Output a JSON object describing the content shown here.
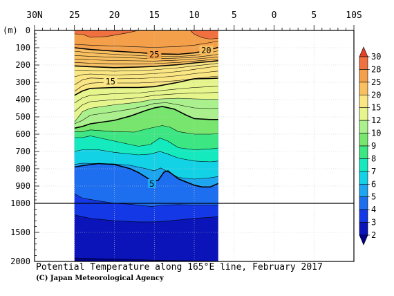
{
  "chart_data": {
    "type": "heatmap",
    "title": "Potential Temperature along 165°E line, February 2017",
    "credit": "(C) Japan Meteorological Agency",
    "x_axis": {
      "ticks": [
        "30N",
        "25",
        "20",
        "15",
        "10",
        "5",
        "0",
        "5",
        "10S"
      ],
      "range_latitude": [
        30,
        -10
      ]
    },
    "y_axis": {
      "unit_label": "(m)",
      "ticks_upper": [
        "0",
        "100",
        "200",
        "300",
        "400",
        "500",
        "600",
        "700",
        "800",
        "900",
        "1000"
      ],
      "ticks_lower": [
        "1500",
        "2000"
      ],
      "range_depth_m": [
        0,
        2000
      ],
      "upper_section_max_m": 1000,
      "section_break_depth_m": 1000
    },
    "data_extent_latitude": [
      25,
      7
    ],
    "colorbar": {
      "levels": [
        "2",
        "3",
        "4",
        "5",
        "6",
        "7",
        "8",
        "9",
        "10",
        "12",
        "15",
        "20",
        "25",
        "28",
        "30"
      ],
      "colors": [
        "#00008a",
        "#0a14b9",
        "#1438e6",
        "#1e6ef0",
        "#1ea5f0",
        "#14d2e6",
        "#14eabe",
        "#3ce682",
        "#78e66e",
        "#aaf08c",
        "#e6f58c",
        "#fae682",
        "#f8c060",
        "#f4a04a",
        "#f07040",
        "#e64028"
      ]
    },
    "isotherm_labels": [
      {
        "label": "25",
        "lat": 15.0,
        "depth_m": 140
      },
      {
        "label": "20",
        "lat": 8.5,
        "depth_m": 115
      },
      {
        "label": "15",
        "lat": 20.5,
        "depth_m": 295
      },
      {
        "label": "5",
        "lat": 15.3,
        "depth_m": 888
      }
    ],
    "isotherms": [
      {
        "temp": 28,
        "bold": false,
        "points": [
          [
            25,
            20
          ],
          [
            24,
            22
          ],
          [
            23,
            40
          ],
          [
            21,
            35
          ],
          [
            18.5,
            15
          ],
          [
            17,
            0
          ]
        ]
      },
      {
        "temp": 28,
        "bold": false,
        "points": [
          [
            10.5,
            0
          ],
          [
            10,
            22
          ],
          [
            9,
            42
          ],
          [
            8,
            50
          ],
          [
            7,
            45
          ]
        ]
      },
      {
        "temp": 26,
        "bold": false,
        "points": [
          [
            25,
            80
          ],
          [
            23,
            85
          ],
          [
            20,
            90
          ],
          [
            17,
            95
          ],
          [
            15,
            98
          ],
          [
            12,
            93
          ],
          [
            10,
            85
          ],
          [
            8,
            70
          ],
          [
            7,
            62
          ]
        ]
      },
      {
        "temp": 25,
        "bold": true,
        "points": [
          [
            25,
            100
          ],
          [
            23,
            110
          ],
          [
            20,
            120
          ],
          [
            17,
            128
          ],
          [
            15,
            135
          ],
          [
            12,
            138
          ],
          [
            10,
            130
          ],
          [
            8,
            112
          ],
          [
            7,
            98
          ]
        ]
      },
      {
        "temp": 24,
        "bold": false,
        "points": [
          [
            25,
            120
          ],
          [
            23,
            130
          ],
          [
            20,
            138
          ],
          [
            17,
            145
          ],
          [
            15,
            150
          ],
          [
            12,
            150
          ],
          [
            10,
            145
          ],
          [
            8,
            128
          ],
          [
            7,
            118
          ]
        ]
      },
      {
        "temp": 23,
        "bold": false,
        "points": [
          [
            25,
            145
          ],
          [
            23,
            150
          ],
          [
            20,
            155
          ],
          [
            17,
            160
          ],
          [
            15,
            163
          ],
          [
            12,
            160
          ],
          [
            10,
            155
          ],
          [
            8,
            145
          ],
          [
            7,
            138
          ]
        ]
      },
      {
        "temp": 22,
        "bold": false,
        "points": [
          [
            25,
            165
          ],
          [
            23,
            170
          ],
          [
            20,
            174
          ],
          [
            17,
            176
          ],
          [
            15,
            177
          ],
          [
            12,
            172
          ],
          [
            10,
            166
          ],
          [
            8,
            158
          ],
          [
            7,
            153
          ]
        ]
      },
      {
        "temp": 21,
        "bold": false,
        "points": [
          [
            25,
            185
          ],
          [
            23,
            190
          ],
          [
            20,
            193
          ],
          [
            17,
            193
          ],
          [
            15,
            192
          ],
          [
            12,
            185
          ],
          [
            10,
            177
          ],
          [
            8,
            170
          ],
          [
            7,
            166
          ]
        ]
      },
      {
        "temp": 20,
        "bold": true,
        "points": [
          [
            25,
            205
          ],
          [
            23,
            210
          ],
          [
            20,
            215
          ],
          [
            17,
            212
          ],
          [
            15,
            208
          ],
          [
            12,
            198
          ],
          [
            10,
            188
          ],
          [
            8,
            180
          ],
          [
            7,
            175
          ]
        ]
      },
      {
        "temp": 19,
        "bold": false,
        "points": [
          [
            25,
            230
          ],
          [
            23,
            232
          ],
          [
            20,
            236
          ],
          [
            17,
            232
          ],
          [
            15,
            228
          ],
          [
            12,
            216
          ],
          [
            10,
            205
          ],
          [
            8,
            195
          ],
          [
            7,
            190
          ]
        ]
      },
      {
        "temp": 18,
        "bold": false,
        "points": [
          [
            25,
            268
          ],
          [
            24,
            256
          ],
          [
            23,
            252
          ],
          [
            20,
            258
          ],
          [
            17,
            254
          ],
          [
            15,
            250
          ],
          [
            12,
            238
          ],
          [
            10,
            225
          ],
          [
            8,
            212
          ],
          [
            7,
            208
          ]
        ]
      },
      {
        "temp": 17,
        "bold": false,
        "points": [
          [
            25,
            315
          ],
          [
            24,
            285
          ],
          [
            23,
            275
          ],
          [
            20,
            280
          ],
          [
            17,
            278
          ],
          [
            15,
            274
          ],
          [
            12,
            262
          ],
          [
            10,
            250
          ],
          [
            8,
            240
          ],
          [
            7,
            235
          ]
        ]
      },
      {
        "temp": 16,
        "bold": false,
        "points": [
          [
            25,
            352
          ],
          [
            24,
            320
          ],
          [
            23,
            305
          ],
          [
            21,
            300
          ],
          [
            20,
            304
          ],
          [
            17,
            304
          ],
          [
            15,
            300
          ],
          [
            12,
            290
          ],
          [
            10,
            278
          ],
          [
            8,
            268
          ],
          [
            7,
            264
          ]
        ]
      },
      {
        "temp": 15,
        "bold": true,
        "points": [
          [
            25,
            375
          ],
          [
            24,
            350
          ],
          [
            23,
            335
          ],
          [
            20,
            330
          ],
          [
            17,
            330
          ],
          [
            15,
            325
          ],
          [
            12,
            300
          ],
          [
            10,
            280
          ],
          [
            8,
            278
          ],
          [
            7,
            276
          ]
        ]
      },
      {
        "temp": 14,
        "bold": false,
        "points": [
          [
            25,
            420
          ],
          [
            24,
            390
          ],
          [
            23,
            375
          ],
          [
            20,
            366
          ],
          [
            17,
            362
          ],
          [
            15,
            352
          ],
          [
            12,
            338
          ],
          [
            10,
            330
          ],
          [
            8,
            325
          ],
          [
            7,
            322
          ]
        ]
      },
      {
        "temp": 13,
        "bold": false,
        "points": [
          [
            25,
            470
          ],
          [
            24,
            430
          ],
          [
            23,
            412
          ],
          [
            20,
            400
          ],
          [
            17,
            390
          ],
          [
            15,
            375
          ],
          [
            12,
            366
          ],
          [
            10,
            362
          ],
          [
            8,
            360
          ],
          [
            7,
            358
          ]
        ]
      },
      {
        "temp": 12,
        "bold": false,
        "points": [
          [
            25,
            530
          ],
          [
            24,
            470
          ],
          [
            23,
            450
          ],
          [
            20,
            430
          ],
          [
            17,
            415
          ],
          [
            15,
            398
          ],
          [
            12,
            392
          ],
          [
            10,
            396
          ],
          [
            8,
            398
          ],
          [
            7,
            398
          ]
        ]
      },
      {
        "temp": 11,
        "bold": false,
        "points": [
          [
            25,
            540
          ],
          [
            24,
            520
          ],
          [
            23,
            490
          ],
          [
            20,
            470
          ],
          [
            18,
            455
          ],
          [
            16,
            435
          ],
          [
            15,
            422
          ],
          [
            13.5,
            418
          ],
          [
            12,
            430
          ],
          [
            10,
            448
          ],
          [
            8,
            452
          ],
          [
            7,
            450
          ]
        ]
      },
      {
        "temp": 10,
        "bold": true,
        "points": [
          [
            25,
            565
          ],
          [
            24,
            555
          ],
          [
            23,
            540
          ],
          [
            20,
            520
          ],
          [
            18,
            495
          ],
          [
            16,
            462
          ],
          [
            15,
            448
          ],
          [
            14,
            440
          ],
          [
            12.5,
            455
          ],
          [
            11,
            490
          ],
          [
            10,
            510
          ],
          [
            8,
            515
          ],
          [
            7,
            515
          ]
        ]
      },
      {
        "temp": 9,
        "bold": false,
        "points": [
          [
            25,
            585
          ],
          [
            24,
            585
          ],
          [
            23,
            575
          ],
          [
            20,
            585
          ],
          [
            17.5,
            588
          ],
          [
            16,
            570
          ],
          [
            14,
            550
          ],
          [
            13,
            560
          ],
          [
            12,
            585
          ],
          [
            10,
            600
          ],
          [
            8,
            600
          ],
          [
            7,
            598
          ]
        ]
      },
      {
        "temp": 8,
        "bold": false,
        "points": [
          [
            25,
            620
          ],
          [
            24,
            620
          ],
          [
            23,
            610
          ],
          [
            20,
            640
          ],
          [
            17,
            670
          ],
          [
            15.5,
            660
          ],
          [
            14.3,
            622
          ],
          [
            13.3,
            640
          ],
          [
            12,
            678
          ],
          [
            10,
            690
          ],
          [
            8,
            685
          ],
          [
            7,
            680
          ]
        ]
      },
      {
        "temp": 7,
        "bold": false,
        "points": [
          [
            25,
            700
          ],
          [
            24,
            690
          ],
          [
            22,
            690
          ],
          [
            20,
            705
          ],
          [
            17,
            720
          ],
          [
            15.5,
            715
          ],
          [
            14.3,
            700
          ],
          [
            13.3,
            715
          ],
          [
            12,
            738
          ],
          [
            10,
            755
          ],
          [
            8,
            760
          ],
          [
            7,
            755
          ]
        ]
      },
      {
        "temp": 6,
        "bold": false,
        "points": [
          [
            25,
            775
          ],
          [
            24,
            768
          ],
          [
            22,
            770
          ],
          [
            20,
            772
          ],
          [
            18,
            780
          ],
          [
            16,
            800
          ],
          [
            15,
            812
          ],
          [
            14.2,
            795
          ],
          [
            13.2,
            820
          ],
          [
            12,
            850
          ],
          [
            10,
            860
          ],
          [
            8,
            852
          ],
          [
            7,
            845
          ]
        ]
      },
      {
        "temp": 5,
        "bold": true,
        "points": [
          [
            25,
            790
          ],
          [
            24,
            782
          ],
          [
            22,
            770
          ],
          [
            20,
            775
          ],
          [
            18,
            800
          ],
          [
            17,
            822
          ],
          [
            16,
            850
          ],
          [
            15.3,
            873
          ],
          [
            14.5,
            866
          ],
          [
            13.8,
            820
          ],
          [
            13.3,
            812
          ],
          [
            12,
            858
          ],
          [
            10,
            895
          ],
          [
            9,
            905
          ],
          [
            8,
            905
          ],
          [
            7,
            885
          ]
        ]
      },
      {
        "temp": 4,
        "bold": false,
        "points": [
          [
            25,
            945
          ],
          [
            24,
            970
          ],
          [
            22,
            985
          ],
          [
            20,
            1000
          ],
          [
            18,
            1015
          ],
          [
            16,
            1045
          ],
          [
            15.3,
            1055
          ],
          [
            14,
            1030
          ],
          [
            12,
            1022
          ],
          [
            10,
            1030
          ],
          [
            8,
            1030
          ],
          [
            7,
            1028
          ]
        ]
      },
      {
        "temp": 3,
        "bold": false,
        "points": [
          [
            25,
            1200
          ],
          [
            23,
            1260
          ],
          [
            20,
            1300
          ],
          [
            17,
            1320
          ],
          [
            15,
            1320
          ],
          [
            13,
            1300
          ],
          [
            10,
            1260
          ],
          [
            8,
            1240
          ],
          [
            7,
            1230
          ]
        ]
      },
      {
        "temp": 2,
        "bold": false,
        "points": [
          [
            25,
            1940
          ],
          [
            23,
            1950
          ],
          [
            20,
            1960
          ],
          [
            17,
            1970
          ],
          [
            15,
            1980
          ],
          [
            13,
            1985
          ],
          [
            10,
            1990
          ],
          [
            8,
            1992
          ],
          [
            7,
            1995
          ]
        ]
      }
    ]
  }
}
